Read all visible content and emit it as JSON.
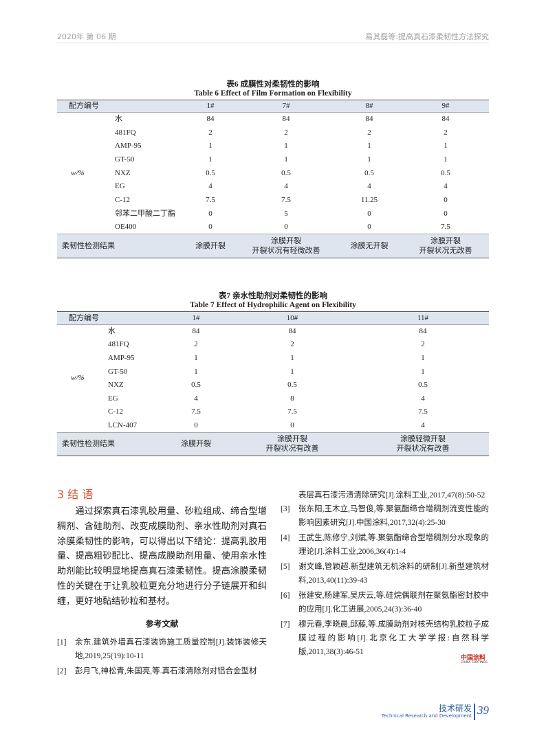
{
  "header": {
    "left": "2020年 第 06 期",
    "right": "易其磊等:提高真石漆柔韧性方法探究"
  },
  "table6": {
    "caption_cn": "表6  成膜性对柔韧性的影响",
    "caption_en": "Table 6   Effect of Film Formation on Flexibility",
    "header": [
      "配方编号",
      "1#",
      "7#",
      "8#",
      "9#"
    ],
    "group_label": "w/%",
    "rows": [
      [
        "水",
        "84",
        "84",
        "84",
        "84"
      ],
      [
        "481FQ",
        "2",
        "2",
        "2",
        "2"
      ],
      [
        "AMP-95",
        "1",
        "1",
        "1",
        "1"
      ],
      [
        "GT-50",
        "1",
        "1",
        "1",
        "1"
      ],
      [
        "NXZ",
        "0.5",
        "0.5",
        "0.5",
        "0.5"
      ],
      [
        "EG",
        "4",
        "4",
        "4",
        "4"
      ],
      [
        "C-12",
        "7.5",
        "7.5",
        "11.25",
        "0"
      ],
      [
        "邻苯二甲酸二丁酯",
        "0",
        "5",
        "0",
        "0"
      ],
      [
        "OE400",
        "0",
        "0",
        "0",
        "7.5"
      ]
    ],
    "result_label": "柔韧性检测结果",
    "results": [
      [
        "涂膜开裂"
      ],
      [
        "涂膜开裂",
        "开裂状况有轻微改善"
      ],
      [
        "涂膜无开裂"
      ],
      [
        "涂膜开裂",
        "开裂状况无改善"
      ]
    ]
  },
  "table7": {
    "caption_cn": "表7  亲水性助剂对柔韧性的影响",
    "caption_en": "Table 7   Effect of Hydrophilic Agent on Flexibility",
    "header": [
      "配方编号",
      "1#",
      "10#",
      "11#"
    ],
    "group_label": "w/%",
    "rows": [
      [
        "水",
        "84",
        "84",
        "84"
      ],
      [
        "481FQ",
        "2",
        "2",
        "2"
      ],
      [
        "AMP-95",
        "1",
        "1",
        "1"
      ],
      [
        "GT-50",
        "1",
        "1",
        "1"
      ],
      [
        "NXZ",
        "0.5",
        "0.5",
        "0.5"
      ],
      [
        "EG",
        "4",
        "8",
        "4"
      ],
      [
        "C-12",
        "7.5",
        "7.5",
        "7.5"
      ],
      [
        "LCN-407",
        "0",
        "0",
        "4"
      ]
    ],
    "result_label": "柔韧性检测结果",
    "results": [
      [
        "涂膜开裂"
      ],
      [
        "涂膜开裂",
        "开裂状况有改善"
      ],
      [
        "涂膜轻微开裂",
        "开裂状况有改善"
      ]
    ]
  },
  "left_column": {
    "heading": "3  结  语",
    "paragraph": "通过探索真石漆乳胶用量、砂粒组成、缔合型增稠剂、含硅助剂、改变成膜助剂、亲水性助剂对真石涂膜柔韧性的影响，可以得出以下结论：提高乳胶用量、提高粗砂配比、提高成膜助剂用量、使用亲水性助剂能比较明显地提高真石漆柔韧性。提高涂膜柔韧性的关键在于让乳胶粒更充分地进行分子链展开和纠缠，更好地黏结砂粒和基材。",
    "references_title": "参考文献",
    "references": [
      {
        "num": "[1]",
        "text": "余东.建筑外墙真石漆装饰施工质量控制[J].装饰装修天地,2019,25(19):10-11"
      },
      {
        "num": "[2]",
        "text": "彭月飞,神松青,朱国亮,等.真石漆清除剂对铝合金型材"
      }
    ]
  },
  "right_column": {
    "continuation": "表层真石漆污渍清除研究[J].涂料工业,2017,47(8):50-52",
    "references": [
      {
        "num": "[3]",
        "text": "张东阳,王木立,马智俊,等.聚氨酯缔合增稠剂流变性能的影响因素研究[J].中国涂料,2017,32(4):25-30"
      },
      {
        "num": "[4]",
        "text": "王武生,陈修宁,刘斌,等.聚氨酯缔合型增稠剂分水现象的理论[J].涂料工业,2006,36(4):1-4"
      },
      {
        "num": "[5]",
        "text": "谢文峰,管颖超.新型建筑无机涂料的研制[J].新型建筑材料,2013,40(11):39-43"
      },
      {
        "num": "[6]",
        "text": "张建安,杨建军,吴庆云,等.硅烷偶联剂在聚氨酯密封胶中的应用[J].化工进展,2005,24(3):36-40"
      },
      {
        "num": "[7]",
        "text": "穆元春,李晓晨,邱藤,等.成膜助剂对核壳结构乳胶粒子成膜过程的影响[J].北京化工大学学报:自然科学版,2011,38(3):46-51"
      }
    ]
  },
  "logo": {
    "cn": "中国涂料",
    "en": "CHINA COATINGS"
  },
  "footer": {
    "section_cn": "技术研发",
    "section_en": "Technical Research and Development",
    "page": "39"
  }
}
